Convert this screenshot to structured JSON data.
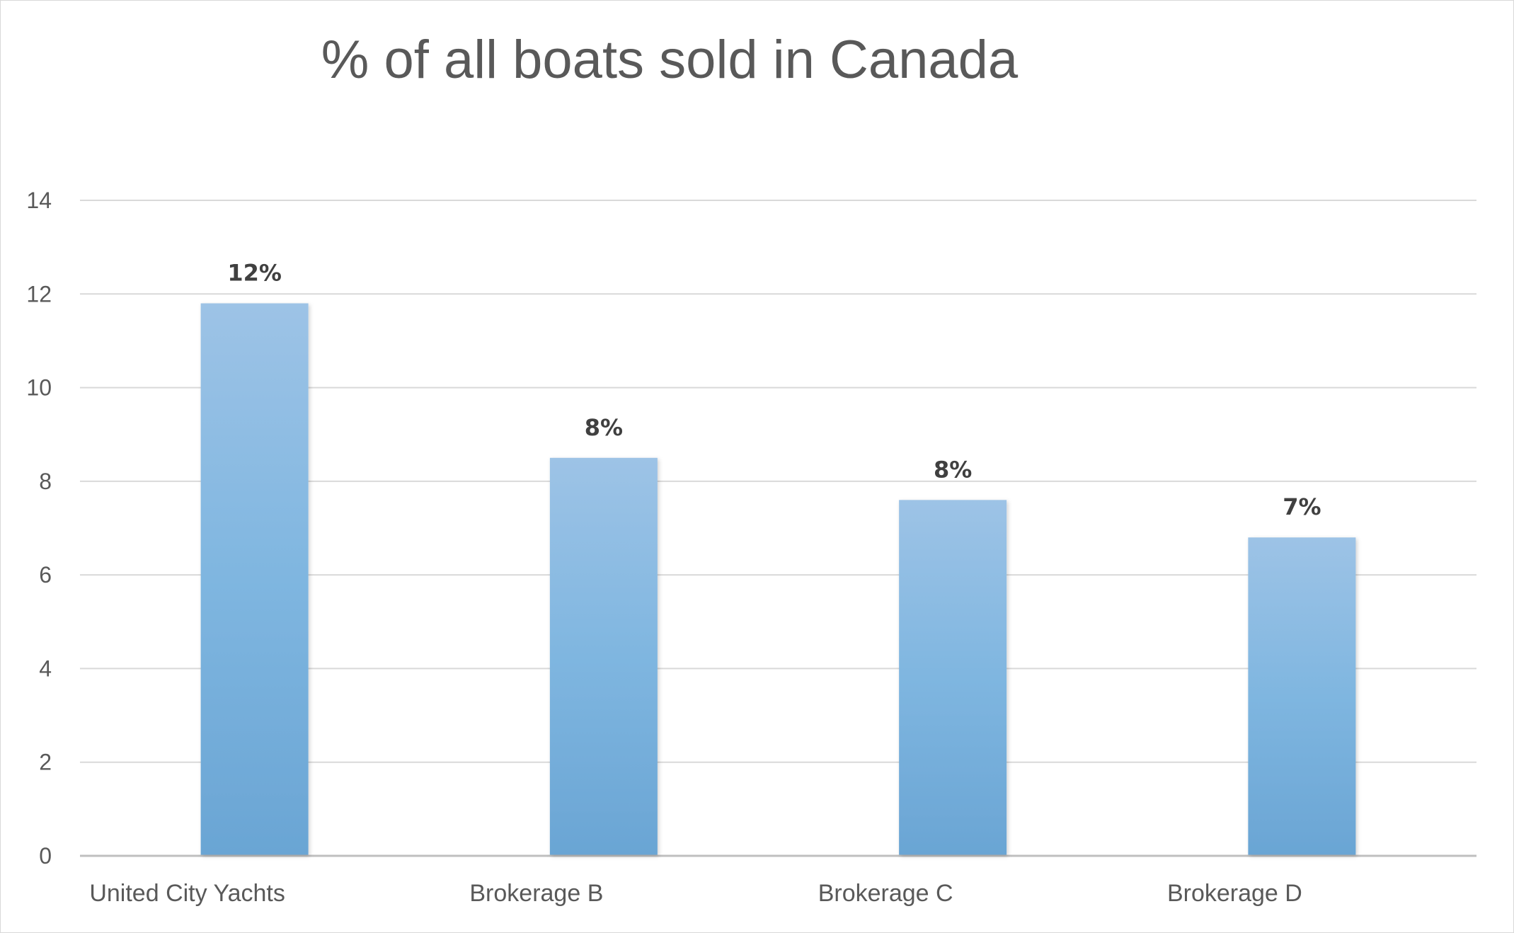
{
  "chart_data": {
    "type": "bar",
    "title": "% of all boats sold in Canada",
    "xlabel": "",
    "ylabel": "",
    "categories": [
      "United City Yachts",
      "Brokerage B",
      "Brokerage C",
      "Brokerage D"
    ],
    "values": [
      11.8,
      8.5,
      7.6,
      6.8
    ],
    "data_labels": [
      "12%",
      "8%",
      "8%",
      "7%"
    ],
    "ylim": [
      0,
      14
    ],
    "yticks": [
      0,
      2,
      4,
      6,
      8,
      10,
      12,
      14
    ],
    "grid": true,
    "legend": "none",
    "colors": {
      "bar_top": "#9dc3e6",
      "bar_mid": "#7fb6e0",
      "bar_bottom": "#6aa5d4",
      "grid": "#d9d9d9",
      "axis": "#d9d9d9"
    }
  }
}
